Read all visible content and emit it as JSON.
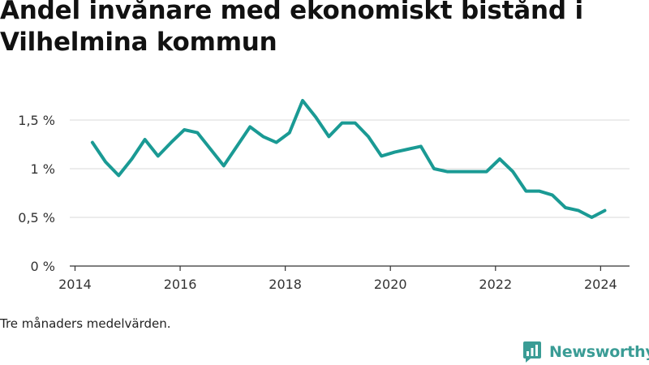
{
  "chart_data": {
    "type": "line",
    "title": "Andel invånare med ekonomiskt bistånd i Vilhelmina kommun",
    "note": "Tre månaders medelvärden.",
    "xlabel": "",
    "ylabel": "",
    "x_ticks": [
      "2014",
      "2016",
      "2018",
      "2020",
      "2022",
      "2024"
    ],
    "x_tick_values": [
      2014,
      2016,
      2018,
      2020,
      2022,
      2024
    ],
    "y_ticks": [
      "0 %",
      "0,5 %",
      "1 %",
      "1,5 %"
    ],
    "y_tick_values": [
      0,
      0.5,
      1,
      1.5
    ],
    "xlim": [
      2013.9,
      2024.55
    ],
    "ylim": [
      0,
      1.8
    ],
    "grid": true,
    "series": [
      {
        "color": "#1a9a94",
        "x": [
          2014.33,
          2014.58,
          2014.83,
          2015.08,
          2015.33,
          2015.58,
          2015.83,
          2016.08,
          2016.33,
          2016.58,
          2016.83,
          2017.08,
          2017.33,
          2017.58,
          2017.83,
          2018.08,
          2018.33,
          2018.58,
          2018.83,
          2019.08,
          2019.33,
          2019.58,
          2019.83,
          2020.08,
          2020.33,
          2020.58,
          2020.83,
          2021.08,
          2021.33,
          2021.58,
          2021.83,
          2022.08,
          2022.33,
          2022.58,
          2022.83,
          2023.08,
          2023.33,
          2023.58,
          2023.83,
          2024.08
        ],
        "y": [
          1.27,
          1.07,
          0.93,
          1.1,
          1.3,
          1.13,
          1.27,
          1.4,
          1.37,
          1.2,
          1.03,
          1.23,
          1.43,
          1.33,
          1.27,
          1.37,
          1.7,
          1.53,
          1.33,
          1.47,
          1.47,
          1.33,
          1.13,
          1.17,
          1.2,
          1.23,
          1.0,
          0.97,
          0.97,
          0.97,
          0.97,
          1.1,
          0.97,
          0.77,
          0.77,
          0.73,
          0.6,
          0.57,
          0.5,
          0.57
        ]
      }
    ]
  },
  "brand": {
    "name": "Newsworthy",
    "icon": "newsworthy-logo-icon",
    "color": "#3a9c95"
  }
}
